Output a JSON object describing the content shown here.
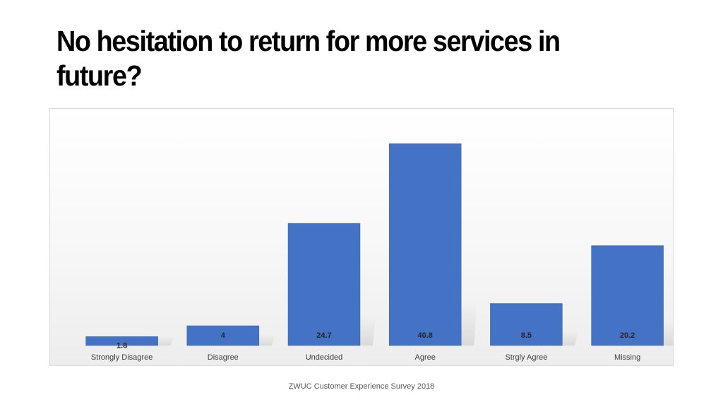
{
  "slide": {
    "title": "No hesitation to return for more services in future?",
    "footer": "ZWUC Customer Experience Survey 2018"
  },
  "colors": {
    "bar": "#4472c4",
    "bar_dark": "#3a63ad",
    "label_text": "#262626",
    "axis_text": "#404040"
  },
  "chart_data": {
    "type": "bar",
    "title": "",
    "xlabel": "",
    "ylabel": "",
    "categories": [
      "Strongly Disagree",
      "Disagree",
      "Undecided",
      "Agree",
      "Strgly Agree",
      "Missing"
    ],
    "values": [
      1.8,
      4,
      24.7,
      40.8,
      8.5,
      20.2
    ],
    "data_labels": [
      "1.8",
      "4",
      "24.7",
      "40.8",
      "8.5",
      "20.2"
    ],
    "ylim": [
      0,
      45
    ],
    "grid": false,
    "legend": "none"
  }
}
